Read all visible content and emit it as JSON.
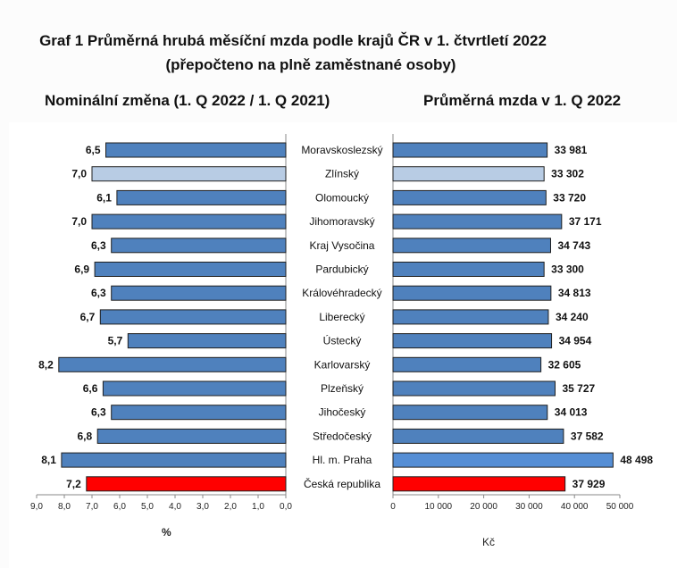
{
  "title_line1": "Graf 1 Průměrná hrubá měsíční mzda podle krajů ČR v 1. čtvrtletí 2022",
  "title_line2": "(přepočteno na plně zaměstnané osoby)",
  "colors": {
    "bar": "#4f81bd",
    "bar_highlight": "#b8cce4",
    "bar_total": "#ff0000",
    "bar_capital": "#558ed5",
    "outline": "#1f1f1f"
  },
  "chart_data": [
    {
      "type": "bar",
      "orientation": "horizontal",
      "title": "Nominální změna (1. Q 2022 / 1. Q 2021)",
      "xlabel": "%",
      "xlim": [
        0,
        9
      ],
      "reversed_axis": true,
      "ticks": [
        "9,0",
        "8,0",
        "7,0",
        "6,0",
        "5,0",
        "4,0",
        "3,0",
        "2,0",
        "1,0",
        "0,0"
      ],
      "categories": [
        "Moravskoslezský",
        "Zlínský",
        "Olomoucký",
        "Jihomoravský",
        "Kraj Vysočina",
        "Pardubický",
        "Královéhradecký",
        "Liberecký",
        "Ústecký",
        "Karlovarský",
        "Plzeňský",
        "Jihočeský",
        "Středočeský",
        "Hl. m. Praha",
        "Česká republika"
      ],
      "values": [
        6.5,
        7.0,
        6.1,
        7.0,
        6.3,
        6.9,
        6.3,
        6.7,
        5.7,
        8.2,
        6.6,
        6.3,
        6.8,
        8.1,
        7.2
      ],
      "labels": [
        "6,5",
        "7,0",
        "6,1",
        "7,0",
        "6,3",
        "6,9",
        "6,3",
        "6,7",
        "5,7",
        "8,2",
        "6,6",
        "6,3",
        "6,8",
        "8,1",
        "7,2"
      ],
      "highlight": [
        "normal",
        "zlin",
        "normal",
        "normal",
        "normal",
        "normal",
        "normal",
        "normal",
        "normal",
        "normal",
        "normal",
        "normal",
        "normal",
        "normal",
        "total"
      ]
    },
    {
      "type": "bar",
      "orientation": "horizontal",
      "title": "Průměrná mzda v 1. Q 2022",
      "xlabel": "Kč",
      "xlim": [
        0,
        50000
      ],
      "ticks": [
        "0",
        "10 000",
        "20 000",
        "30 000",
        "40 000",
        "50 000"
      ],
      "categories": [
        "Moravskoslezský",
        "Zlínský",
        "Olomoucký",
        "Jihomoravský",
        "Kraj Vysočina",
        "Pardubický",
        "Královéhradecký",
        "Liberecký",
        "Ústecký",
        "Karlovarský",
        "Plzeňský",
        "Jihočeský",
        "Středočeský",
        "Hl. m. Praha",
        "Česká republika"
      ],
      "values": [
        33981,
        33302,
        33720,
        37171,
        34743,
        33300,
        34813,
        34240,
        34954,
        32605,
        35727,
        34013,
        37582,
        48498,
        37929
      ],
      "labels": [
        "33 981",
        "33 302",
        "33 720",
        "37 171",
        "34 743",
        "33 300",
        "34 813",
        "34 240",
        "34 954",
        "32 605",
        "35 727",
        "34 013",
        "37 582",
        "48 498",
        "37 929"
      ],
      "highlight": [
        "normal",
        "zlin",
        "normal",
        "normal",
        "normal",
        "normal",
        "normal",
        "normal",
        "normal",
        "normal",
        "normal",
        "normal",
        "normal",
        "capital",
        "total"
      ]
    }
  ]
}
